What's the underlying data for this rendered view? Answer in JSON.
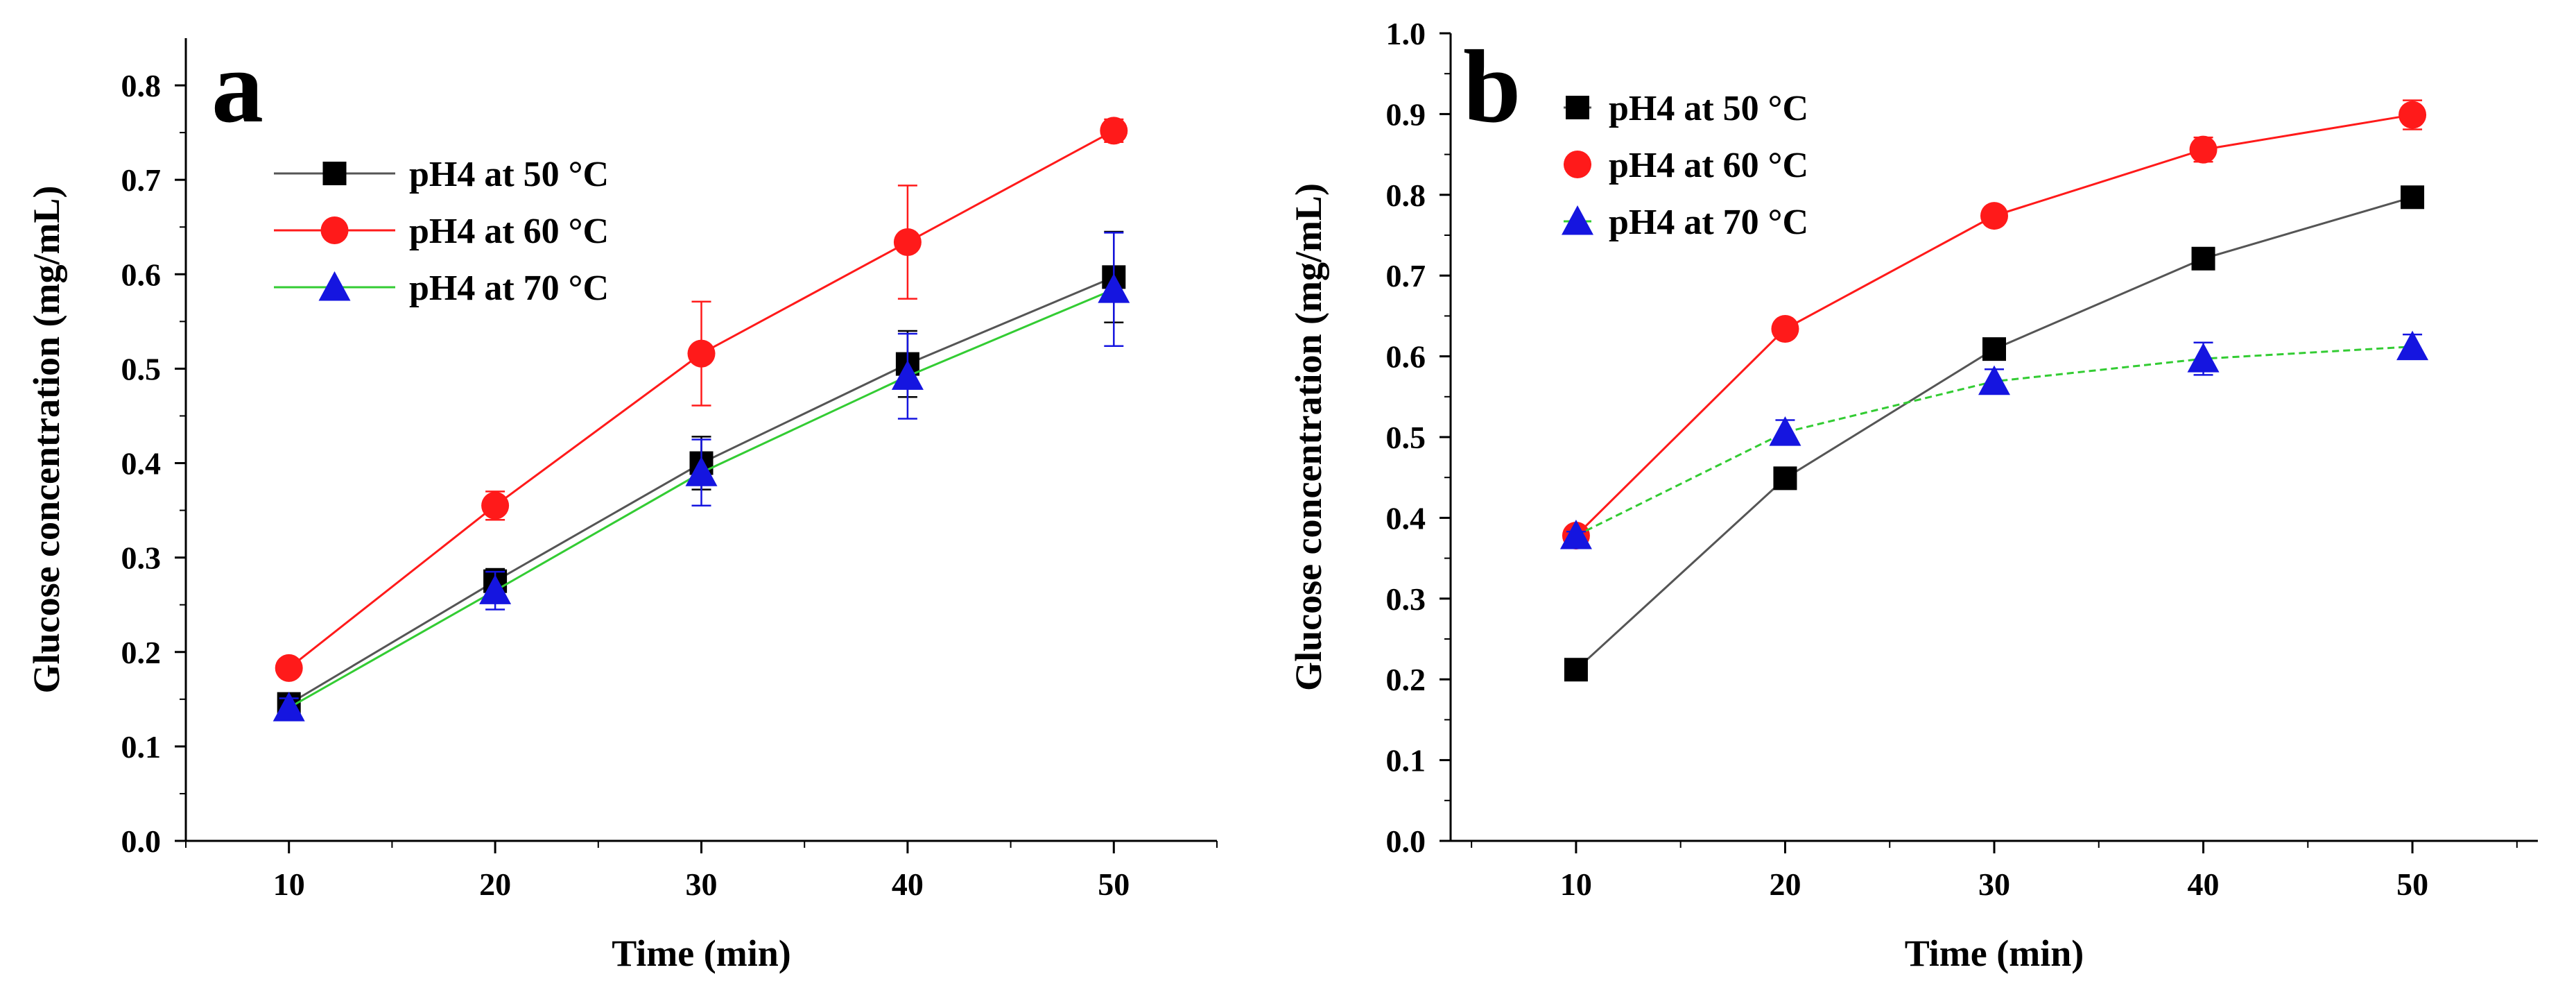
{
  "chart_data": [
    {
      "panel": "a",
      "type": "line",
      "xlabel": "Time (min)",
      "ylabel": "Glucose concentration (mg/mL)",
      "xlim": [
        5,
        55
      ],
      "ylim": [
        0.0,
        0.85
      ],
      "xticks": [
        10,
        20,
        30,
        40,
        50
      ],
      "yticks": [
        0.0,
        0.1,
        0.2,
        0.3,
        0.4,
        0.5,
        0.6,
        0.7,
        0.8
      ],
      "legend_position": "upper-left",
      "x": [
        10,
        20,
        30,
        40,
        50
      ],
      "series": [
        {
          "name": "pH4 at 50 °C",
          "marker": "square",
          "color": "#000000",
          "line_color": "#555555",
          "values": [
            0.145,
            0.275,
            0.4,
            0.505,
            0.597
          ],
          "errors": [
            0.008,
            0.013,
            0.028,
            0.035,
            0.048
          ]
        },
        {
          "name": "pH4 at 60 °C",
          "marker": "circle",
          "color": "#ff1a1a",
          "line_color": "#ff1a1a",
          "values": [
            0.183,
            0.355,
            0.516,
            0.634,
            0.752
          ],
          "errors": [
            0.005,
            0.015,
            0.055,
            0.06,
            0.012
          ]
        },
        {
          "name": "pH4 at 70 °C",
          "marker": "triangle",
          "color": "#1515e0",
          "line_color": "#33cc33",
          "values": [
            0.141,
            0.265,
            0.39,
            0.492,
            0.584
          ],
          "errors": [
            0.01,
            0.02,
            0.035,
            0.045,
            0.06
          ]
        }
      ]
    },
    {
      "panel": "b",
      "type": "line",
      "xlabel": "Time (min)",
      "ylabel": "Glucose concentration (mg/mL)",
      "xlim": [
        4,
        56
      ],
      "ylim": [
        0.0,
        1.0
      ],
      "xticks": [
        10,
        20,
        30,
        40,
        50
      ],
      "yticks": [
        0.0,
        0.1,
        0.2,
        0.3,
        0.4,
        0.5,
        0.6,
        0.7,
        0.8,
        0.9,
        1.0
      ],
      "legend_position": "upper-left",
      "x": [
        10,
        20,
        30,
        40,
        50
      ],
      "series": [
        {
          "name": "pH4 at 50 °C",
          "marker": "square",
          "color": "#000000",
          "line_color": "#555555",
          "values": [
            0.212,
            0.449,
            0.609,
            0.721,
            0.797
          ],
          "errors": [
            0.004,
            0.006,
            0.008,
            0.008,
            0.006
          ]
        },
        {
          "name": "pH4 at 60 °C",
          "marker": "circle",
          "color": "#ff1a1a",
          "line_color": "#ff1a1a",
          "values": [
            0.378,
            0.634,
            0.774,
            0.856,
            0.899
          ],
          "errors": [
            0.004,
            0.008,
            0.008,
            0.015,
            0.018
          ]
        },
        {
          "name": "pH4 at 70 °C",
          "marker": "triangle",
          "color": "#1515e0",
          "line_color": "#33cc33",
          "values": [
            0.378,
            0.506,
            0.569,
            0.597,
            0.612
          ],
          "errors": [
            0.005,
            0.015,
            0.015,
            0.02,
            0.015
          ]
        }
      ]
    }
  ]
}
